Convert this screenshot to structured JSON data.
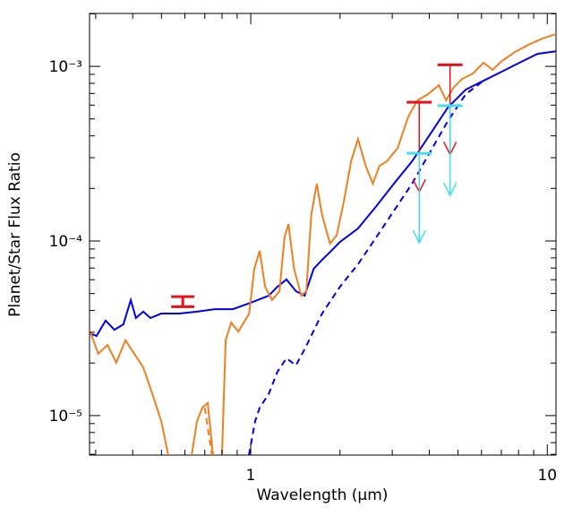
{
  "chart_data": {
    "type": "line",
    "x_label": "Wavelength (μm)",
    "y_label": "Planet/Star Flux Ratio",
    "x_log": true,
    "y_log": true,
    "xlim": [
      0.286,
      10.7
    ],
    "ylim": [
      5.94e-06,
      0.00201
    ],
    "xticks": [
      1,
      10
    ],
    "yticks": [
      {
        "value": 1e-05,
        "label": "10⁻⁵"
      },
      {
        "value": 0.0001,
        "label": "10⁻⁴"
      },
      {
        "value": 0.001,
        "label": "10⁻³"
      }
    ],
    "xminor_ticks": [
      0.3,
      0.4,
      0.5,
      0.6,
      0.7,
      0.8,
      0.9,
      2,
      3,
      4,
      5,
      6,
      7,
      8,
      9
    ],
    "yminor_ticks": [
      6e-06,
      7e-06,
      8e-06,
      9e-06,
      2e-05,
      3e-05,
      4e-05,
      5e-05,
      6e-05,
      7e-05,
      8e-05,
      9e-05,
      0.0002,
      0.0003,
      0.0004,
      0.0005,
      0.0006,
      0.0007,
      0.0008,
      0.0009,
      0.002
    ],
    "series": [
      {
        "color": "#0000ee",
        "dashed": false,
        "x": [
          0.286,
          0.302,
          0.324,
          0.347,
          0.372,
          0.394,
          0.41,
          0.434,
          0.459,
          0.499,
          0.573,
          0.659,
          0.757,
          0.871,
          1.0,
          1.15,
          1.23,
          1.32,
          1.42,
          1.52,
          1.63,
          1.74,
          1.87,
          2.0,
          2.3,
          2.65,
          3.04,
          3.5,
          4.02,
          4.62,
          5.31,
          6.1,
          7.01,
          8.06,
          9.27,
          10.7
        ],
        "values": [
          2.96e-05,
          2.86e-05,
          3.5e-05,
          3.1e-05,
          3.33e-05,
          4.59e-05,
          3.62e-05,
          3.94e-05,
          3.62e-05,
          3.84e-05,
          3.84e-05,
          3.94e-05,
          4.07e-05,
          4.07e-05,
          4.43e-05,
          4.86e-05,
          5.47e-05,
          6.02e-05,
          5.16e-05,
          4.86e-05,
          6.93e-05,
          7.8e-05,
          8.79e-05,
          9.88e-05,
          0.000118,
          0.000158,
          0.000213,
          0.000286,
          0.000407,
          0.000581,
          0.000736,
          0.000828,
          0.000931,
          0.00105,
          0.00118,
          0.00122
        ]
      },
      {
        "color": "#0000ee",
        "dashed": true,
        "x": [
          0.986,
          1.035,
          1.072,
          1.15,
          1.23,
          1.32,
          1.42,
          1.52,
          1.74,
          2.0,
          2.3,
          2.65,
          3.04,
          3.5,
          4.02,
          4.62,
          5.31,
          6.1
        ],
        "values": [
          5.94e-06,
          9.31e-06,
          1.11e-05,
          1.33e-05,
          1.78e-05,
          2.13e-05,
          1.94e-05,
          2.4e-05,
          3.84e-05,
          5.47e-05,
          7.36e-05,
          0.000105,
          0.000149,
          0.000213,
          0.000322,
          0.000486,
          0.000693,
          0.000828
        ]
      },
      {
        "color": "#f07f20",
        "dashed": false,
        "x": [
          0.286,
          0.306,
          0.329,
          0.352,
          0.378,
          0.405,
          0.434,
          0.466,
          0.499,
          0.527,
          0.6,
          0.632,
          0.659,
          0.687,
          0.716,
          0.746,
          0.78,
          0.8,
          0.823,
          0.859,
          0.908,
          0.988,
          1.028,
          1.072,
          1.118,
          1.18,
          1.25,
          1.3,
          1.34,
          1.4,
          1.48,
          1.54,
          1.6,
          1.67,
          1.74,
          1.85,
          1.95,
          2.06,
          2.18,
          2.3,
          2.44,
          2.58,
          2.72,
          2.88,
          3.13,
          3.4,
          3.65,
          3.96,
          4.31,
          4.56,
          4.82,
          5.16,
          5.61,
          6.1,
          6.54,
          7.01,
          7.79,
          8.64,
          9.59,
          10.7
        ],
        "values": [
          3.1e-05,
          2.26e-05,
          2.54e-05,
          2.01e-05,
          2.7e-05,
          2.26e-05,
          1.89e-05,
          1.33e-05,
          9.31e-06,
          5.94e-06,
          null,
          5.94e-06,
          9.31e-06,
          1.11e-05,
          1.18e-05,
          5.94e-06,
          null,
          5.94e-06,
          2.7e-05,
          3.41e-05,
          3.03e-05,
          3.84e-05,
          6.93e-05,
          8.79e-05,
          5.47e-05,
          4.59e-05,
          5.16e-05,
          0.000105,
          0.000125,
          6.93e-05,
          4.86e-05,
          5.16e-05,
          0.000141,
          0.000213,
          0.000141,
          9.66e-05,
          0.000108,
          0.000168,
          0.000286,
          0.000384,
          0.00027,
          0.000213,
          0.00027,
          0.000286,
          0.000341,
          0.000516,
          0.000639,
          0.000693,
          0.00078,
          0.000639,
          0.000753,
          0.000847,
          0.00091,
          0.00105,
          0.000954,
          0.00107,
          0.00121,
          0.00133,
          0.00144,
          0.00153
        ]
      },
      {
        "color": "#f07f20",
        "dashed": true,
        "x": [
          0.7,
          0.72,
          0.74
        ],
        "values": [
          1.11e-05,
          8e-06,
          5.94e-06
        ]
      }
    ],
    "ranges": [
      {
        "x": 0.59,
        "low": 4.2e-05,
        "high": 4.8e-05,
        "color": "#e8101a"
      }
    ],
    "upper_limits": [
      {
        "x": 3.7,
        "value": 0.000623,
        "color": "#e8101a"
      },
      {
        "x": 4.7,
        "value": 0.00102,
        "color": "#e8101a"
      },
      {
        "x": 3.7,
        "value": 0.000318,
        "color": "#40e0f0"
      },
      {
        "x": 4.7,
        "value": 0.000595,
        "color": "#40e0f0"
      }
    ]
  }
}
